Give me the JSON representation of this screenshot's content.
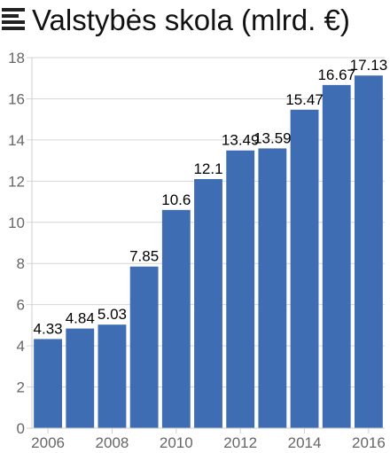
{
  "header": {
    "title": "Valstybės skola (mlrd. €)",
    "icon": "menu-icon"
  },
  "chart_data": {
    "type": "bar",
    "categories": [
      "2006",
      "2007",
      "2008",
      "2009",
      "2010",
      "2011",
      "2012",
      "2013",
      "2014",
      "2015",
      "2016"
    ],
    "values": [
      4.33,
      4.84,
      5.03,
      7.85,
      10.6,
      12.1,
      13.49,
      13.59,
      15.47,
      16.67,
      17.13
    ],
    "value_labels": [
      "4.33",
      "4.84",
      "5.03",
      "7.85",
      "10.6",
      "12.1",
      "13.49",
      "13.59",
      "15.47",
      "16.67",
      "17.13"
    ],
    "x_tick_labels": [
      "2006",
      "2008",
      "2010",
      "2012",
      "2014",
      "2016"
    ],
    "y_ticks": [
      0,
      2,
      4,
      6,
      8,
      10,
      12,
      14,
      16,
      18
    ],
    "ylim": [
      0,
      18
    ],
    "title": "Valstybės skola (mlrd. €)",
    "xlabel": "",
    "ylabel": "",
    "grid": true,
    "bar_color": "#3e6db4"
  }
}
